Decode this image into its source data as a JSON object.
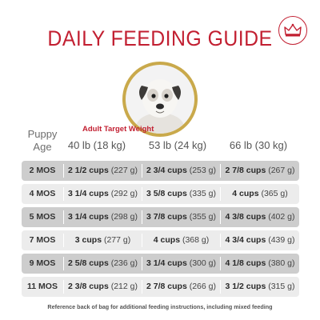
{
  "title": "DAILY FEEDING GUIDE",
  "brand_icon": "crown-icon",
  "accent_color": "#c21f31",
  "header": {
    "puppy_age_line1": "Puppy",
    "puppy_age_line2": "Age",
    "adult_target_weight": "Adult Target Weight",
    "columns": [
      "40 lb (18 kg)",
      "53 lb (24 kg)",
      "66 lb (30 kg)"
    ]
  },
  "rows": [
    {
      "age": "2 MOS",
      "cells": [
        {
          "cups": "2 1/2 cups",
          "grams": "(227 g)"
        },
        {
          "cups": "2 3/4 cups",
          "grams": "(253 g)"
        },
        {
          "cups": "2 7/8 cups",
          "grams": "(267 g)"
        }
      ]
    },
    {
      "age": "4 MOS",
      "cells": [
        {
          "cups": "3 1/4 cups",
          "grams": "(292 g)"
        },
        {
          "cups": "3 5/8 cups",
          "grams": "(335 g)"
        },
        {
          "cups": "4 cups",
          "grams": "(365 g)"
        }
      ]
    },
    {
      "age": "5 MOS",
      "cells": [
        {
          "cups": "3 1/4 cups",
          "grams": "(298 g)"
        },
        {
          "cups": "3 7/8 cups",
          "grams": "(355 g)"
        },
        {
          "cups": "4 3/8 cups",
          "grams": "(402 g)"
        }
      ]
    },
    {
      "age": "7 MOS",
      "cells": [
        {
          "cups": "3 cups",
          "grams": "(277 g)"
        },
        {
          "cups": "4 cups",
          "grams": "(368 g)"
        },
        {
          "cups": "4 3/4 cups",
          "grams": "(439 g)"
        }
      ]
    },
    {
      "age": "9 MOS",
      "cells": [
        {
          "cups": "2 5/8 cups",
          "grams": "(236 g)"
        },
        {
          "cups": "3 1/4 cups",
          "grams": "(300 g)"
        },
        {
          "cups": "4 1/8 cups",
          "grams": "(380 g)"
        }
      ]
    },
    {
      "age": "11 MOS",
      "cells": [
        {
          "cups": "2 3/8 cups",
          "grams": "(212 g)"
        },
        {
          "cups": "2 7/8 cups",
          "grams": "(266 g)"
        },
        {
          "cups": "3 1/2 cups",
          "grams": "(315 g)"
        }
      ]
    }
  ],
  "footnote": "Reference back of bag for additional feeding instructions, including mixed feeding"
}
